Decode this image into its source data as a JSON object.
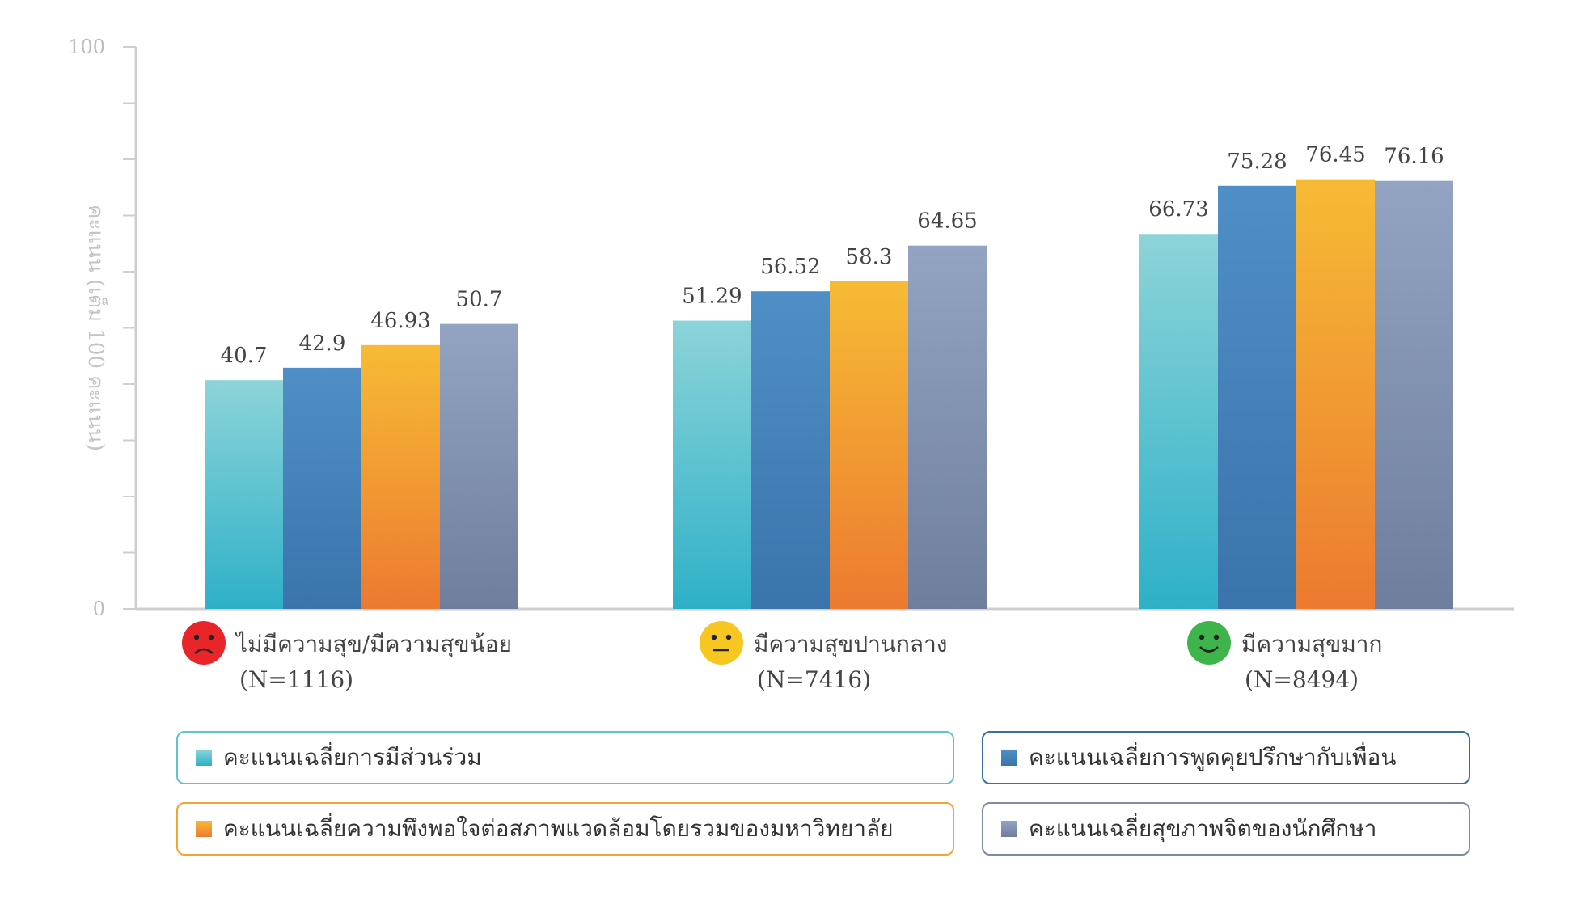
{
  "chart_data": {
    "type": "bar",
    "ylabel": "คะแนน (เต็ม 100 คะแนน)",
    "ylim": [
      0,
      100
    ],
    "ytick_labels": [
      "0",
      "100"
    ],
    "grid": false,
    "legend_position": "bottom",
    "categories": [
      {
        "label": "ไม่มีความสุข/มีความสุขน้อย",
        "n_label": "(N=1116)",
        "mood": "sad-face-icon",
        "mood_color": "#e8262a"
      },
      {
        "label": "มีความสุขปานกลาง",
        "n_label": "(N=7416)",
        "mood": "neutral-face-icon",
        "mood_color": "#f6c720"
      },
      {
        "label": "มีความสุขมาก",
        "n_label": "(N=8494)",
        "mood": "happy-face-icon",
        "mood_color": "#3db54a"
      }
    ],
    "series": [
      {
        "name": "คะแนนเฉลี่ยการมีส่วนร่วม",
        "values": [
          40.7,
          51.29,
          66.73
        ],
        "labels": [
          "40.7",
          "51.29",
          "66.73"
        ],
        "color_top": "#8dd4d8",
        "color_bottom": "#2eb0c8"
      },
      {
        "name": "คะแนนเฉลี่ยการพูดคุยปรึกษากับเพื่อน",
        "values": [
          42.9,
          56.52,
          75.28
        ],
        "labels": [
          "42.9",
          "56.52",
          "75.28"
        ],
        "color_top": "#4f8fc6",
        "color_bottom": "#3a74ab"
      },
      {
        "name": "คะแนนเฉลี่ยความพึงพอใจต่อสภาพแวดล้อมโดยรวมของมหาวิทยาลัย",
        "values": [
          46.93,
          58.3,
          76.45
        ],
        "labels": [
          "46.93",
          "58.3",
          "76.45"
        ],
        "color_top": "#f6bb35",
        "color_bottom": "#ec7a30"
      },
      {
        "name": "คะแนนเฉลี่ยสุขภาพจิตของนักศึกษา",
        "values": [
          50.7,
          64.65,
          76.16
        ],
        "labels": [
          "50.7",
          "64.65",
          "76.16"
        ],
        "color_top": "#93a4c2",
        "color_bottom": "#6e7e9c"
      }
    ]
  },
  "legend": {
    "border_colors": [
      "#5fc4cf",
      "#3a6e9e",
      "#f3a533",
      "#7f8aa6"
    ]
  }
}
